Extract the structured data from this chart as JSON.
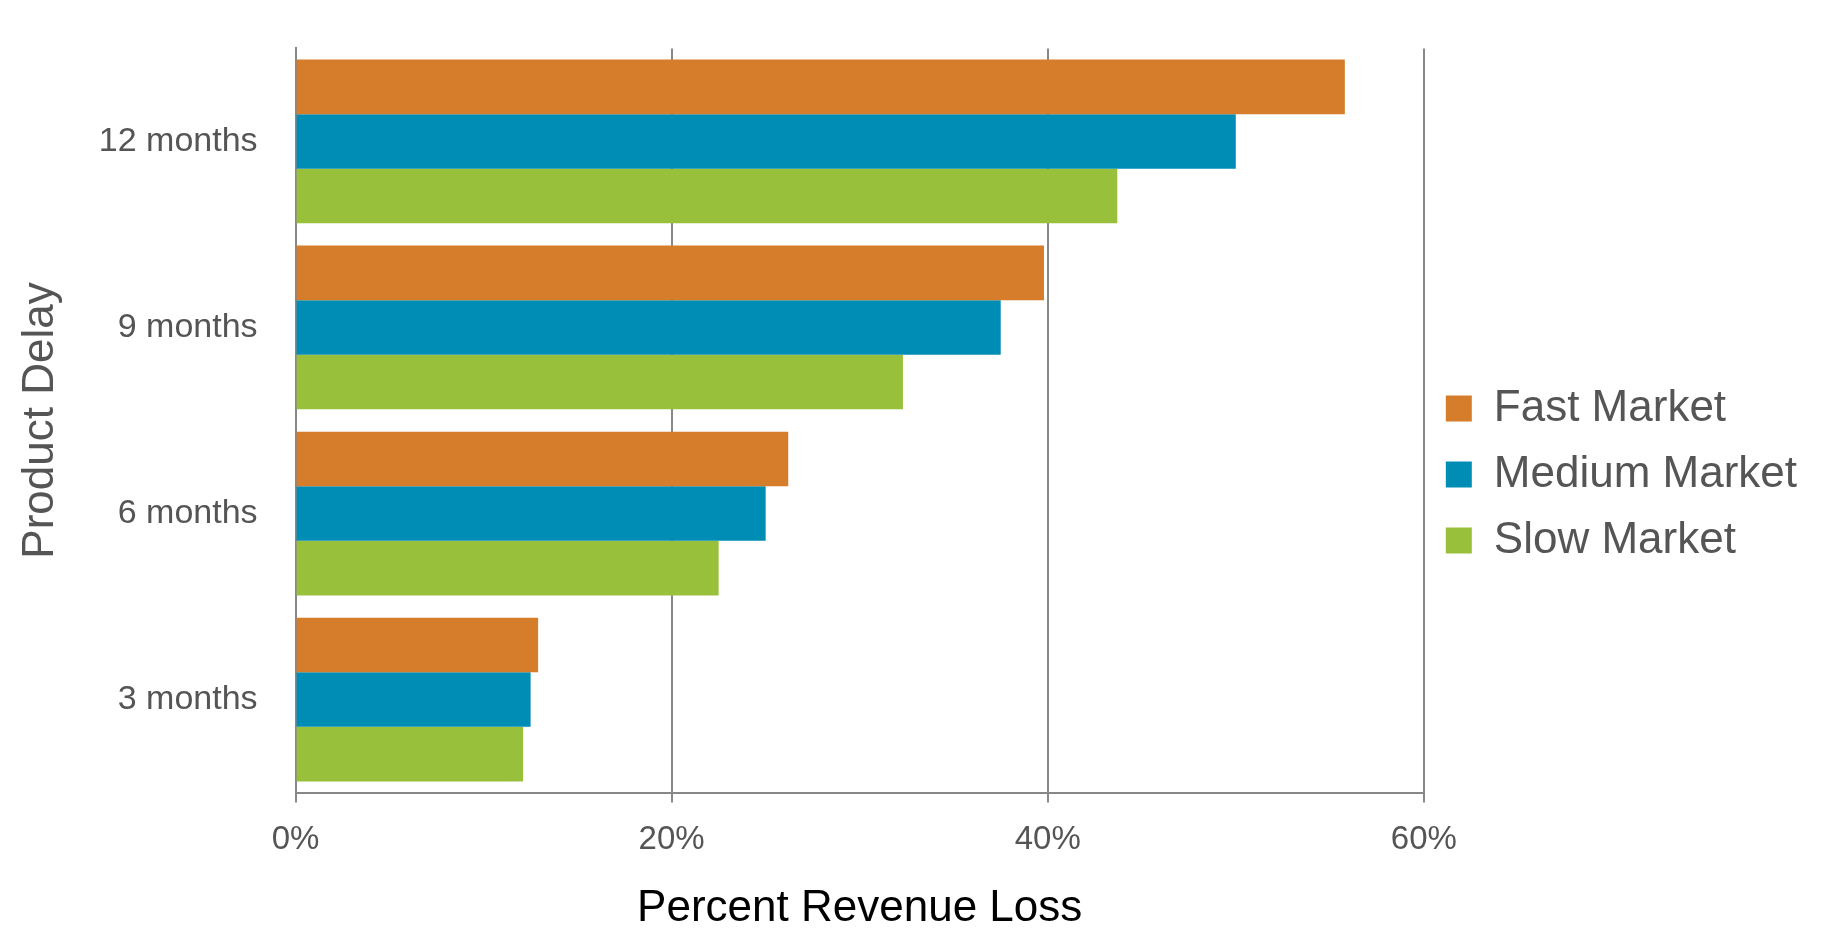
{
  "chart_data": {
    "type": "bar",
    "orientation": "horizontal",
    "xlabel": "Percent Revenue Loss",
    "ylabel": "Product Delay",
    "categories": [
      "12 months",
      "9 months",
      "6 months",
      "3 months"
    ],
    "series": [
      {
        "name": "Fast Market",
        "color": "#d57d2a",
        "values": [
          55.8,
          39.8,
          26.2,
          12.9
        ]
      },
      {
        "name": "Medium Market",
        "color": "#008db5",
        "values": [
          50,
          37.5,
          25,
          12.5
        ]
      },
      {
        "name": "Slow Market",
        "color": "#99c03b",
        "values": [
          43.7,
          32.3,
          22.5,
          12.1
        ]
      }
    ],
    "xlim": [
      0,
      60
    ],
    "xticks": [
      {
        "value": 0,
        "label": "0%"
      },
      {
        "value": 20,
        "label": "20%"
      },
      {
        "value": 40,
        "label": "40%"
      },
      {
        "value": 60,
        "label": "60%"
      }
    ],
    "grid": "x",
    "legend": "right"
  }
}
